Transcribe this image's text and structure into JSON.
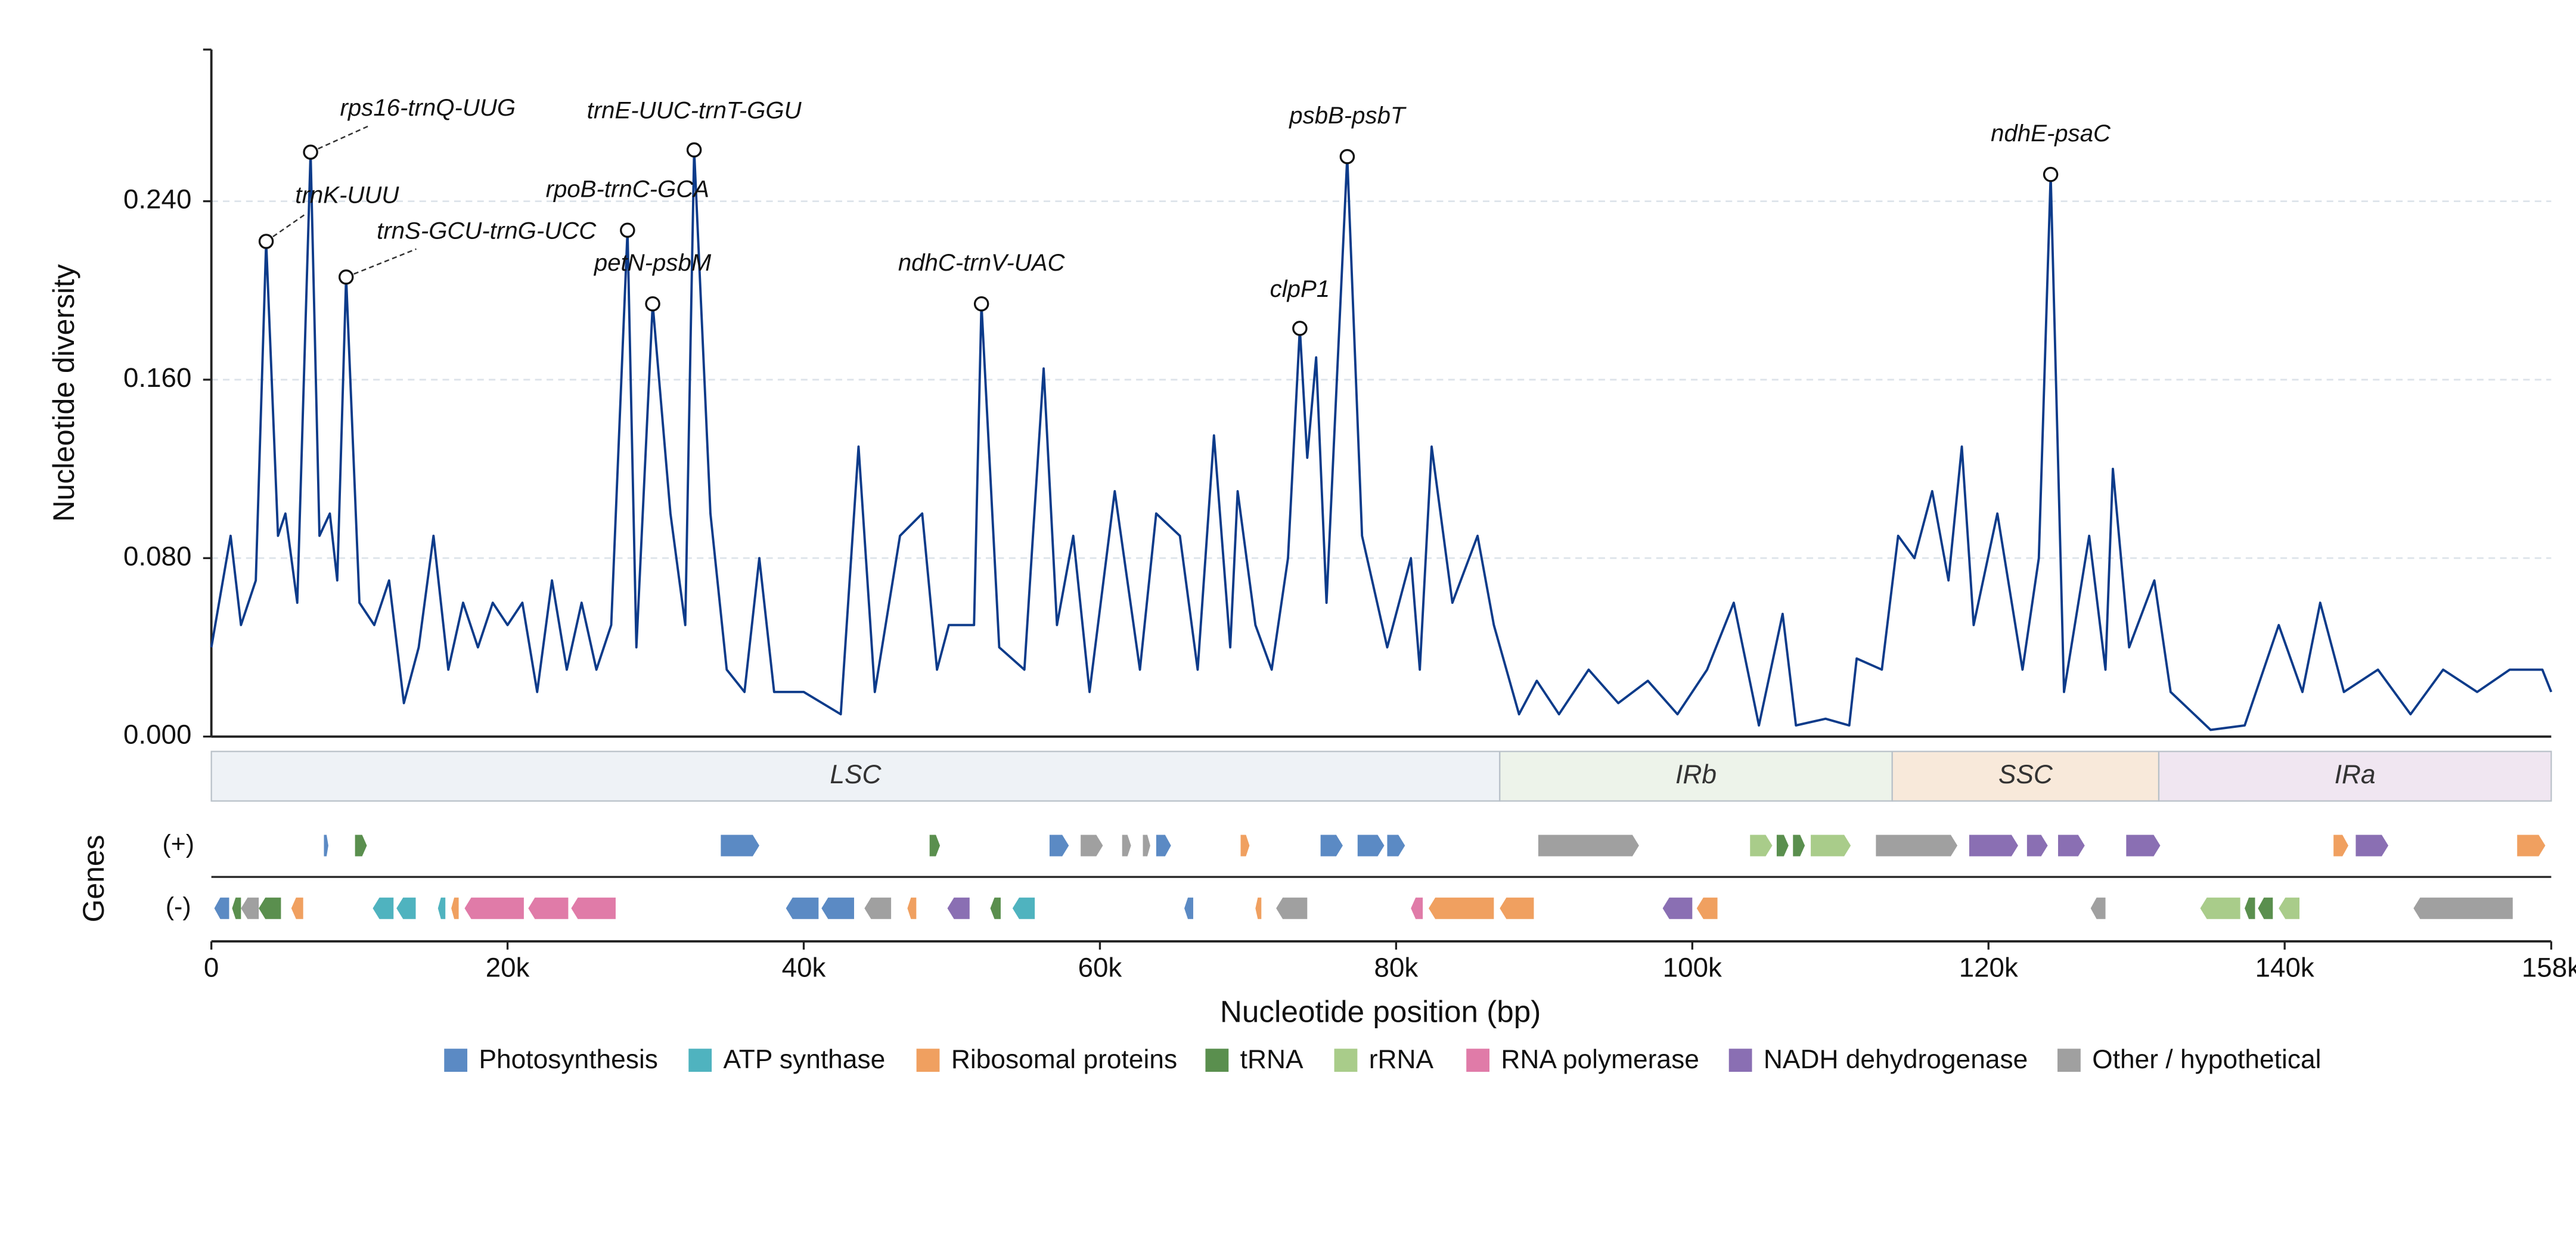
{
  "chart_data": {
    "type": "line",
    "ylabel": "Nucleotide diversity",
    "xlabel": "Nucleotide position (bp)",
    "color": "#0d3b8a",
    "grid": true,
    "xlim": [
      0,
      158000
    ],
    "xticks": [
      {
        "value": 0,
        "label": "0"
      },
      {
        "value": 20000,
        "label": "20k"
      },
      {
        "value": 40000,
        "label": "40k"
      },
      {
        "value": 60000,
        "label": "60k"
      },
      {
        "value": 80000,
        "label": "80k"
      },
      {
        "value": 100000,
        "label": "100k"
      },
      {
        "value": 120000,
        "label": "120k"
      },
      {
        "value": 140000,
        "label": "140k"
      },
      {
        "value": 158000,
        "label": "158k"
      }
    ],
    "ylim": [
      0,
      0.308
    ],
    "yticks": [
      {
        "value": 0,
        "label": "0.000"
      },
      {
        "value": 0.08,
        "label": "0.080"
      },
      {
        "value": 0.16,
        "label": "0.160"
      },
      {
        "value": 0.24,
        "label": "0.240"
      }
    ],
    "x": [
      0,
      1300,
      2000,
      3000,
      3700,
      4500,
      5000,
      5800,
      6700,
      7300,
      8000,
      8500,
      9100,
      10000,
      11000,
      12000,
      13000,
      14000,
      15000,
      16000,
      17000,
      18000,
      19000,
      20000,
      21000,
      22000,
      23000,
      24000,
      25000,
      26000,
      27000,
      28100,
      28700,
      29800,
      31000,
      32000,
      32600,
      33700,
      34800,
      36000,
      37000,
      38000,
      40000,
      42500,
      43700,
      44800,
      46500,
      48000,
      49000,
      49800,
      51500,
      52000,
      53200,
      54900,
      56200,
      57100,
      58200,
      59300,
      61000,
      62700,
      63800,
      65400,
      66600,
      67700,
      68800,
      69300,
      70500,
      71600,
      72700,
      73500,
      74000,
      74600,
      75300,
      76700,
      77700,
      79400,
      81000,
      81600,
      82400,
      83800,
      85500,
      86600,
      88300,
      89500,
      91000,
      93000,
      95000,
      97000,
      99000,
      101000,
      102800,
      104500,
      106100,
      107000,
      109000,
      110600,
      111100,
      112800,
      113900,
      115000,
      116200,
      117300,
      118200,
      119000,
      120600,
      122300,
      123400,
      124200,
      125100,
      126800,
      127900,
      128400,
      129500,
      131200,
      132300,
      135000,
      137300,
      139600,
      141200,
      142400,
      144000,
      146300,
      148500,
      150700,
      153000,
      155200,
      157400,
      158000
    ],
    "values": [
      0.04,
      0.09,
      0.05,
      0.07,
      0.222,
      0.09,
      0.1,
      0.06,
      0.262,
      0.09,
      0.1,
      0.07,
      0.206,
      0.06,
      0.05,
      0.07,
      0.015,
      0.04,
      0.09,
      0.03,
      0.06,
      0.04,
      0.06,
      0.05,
      0.06,
      0.02,
      0.07,
      0.03,
      0.06,
      0.03,
      0.05,
      0.227,
      0.04,
      0.194,
      0.1,
      0.05,
      0.263,
      0.1,
      0.03,
      0.02,
      0.08,
      0.02,
      0.02,
      0.01,
      0.13,
      0.02,
      0.09,
      0.1,
      0.03,
      0.05,
      0.05,
      0.194,
      0.04,
      0.03,
      0.165,
      0.05,
      0.09,
      0.02,
      0.11,
      0.03,
      0.1,
      0.09,
      0.03,
      0.135,
      0.04,
      0.11,
      0.05,
      0.03,
      0.08,
      0.183,
      0.125,
      0.17,
      0.06,
      0.26,
      0.09,
      0.04,
      0.08,
      0.03,
      0.13,
      0.06,
      0.09,
      0.05,
      0.01,
      0.025,
      0.01,
      0.03,
      0.015,
      0.025,
      0.01,
      0.03,
      0.06,
      0.005,
      0.055,
      0.005,
      0.008,
      0.005,
      0.035,
      0.03,
      0.09,
      0.08,
      0.11,
      0.07,
      0.13,
      0.05,
      0.1,
      0.03,
      0.08,
      0.252,
      0.02,
      0.09,
      0.03,
      0.12,
      0.04,
      0.07,
      0.02,
      0.003,
      0.005,
      0.05,
      0.02,
      0.06,
      0.02,
      0.03,
      0.01,
      0.03,
      0.02,
      0.03,
      0.03,
      0.02
    ],
    "annotations": [
      {
        "label": "trnK-UUU",
        "x": 3700,
        "y": 0.222
      },
      {
        "label": "rps16-trnQ-UUG",
        "x": 6700,
        "y": 0.262
      },
      {
        "label": "trnS-GCU-trnG-UCC",
        "x": 9100,
        "y": 0.206
      },
      {
        "label": "rpoB-trnC-GCA",
        "x": 28100,
        "y": 0.227
      },
      {
        "label": "petN-psbM",
        "x": 29800,
        "y": 0.194
      },
      {
        "label": "trnE-UUC-trnT-GGU",
        "x": 32600,
        "y": 0.263
      },
      {
        "label": "ndhC-trnV-UAC",
        "x": 52000,
        "y": 0.194
      },
      {
        "label": "clpP1",
        "x": 73500,
        "y": 0.183
      },
      {
        "label": "psbB-psbT",
        "x": 76700,
        "y": 0.26
      },
      {
        "label": "ndhE-psaC",
        "x": 124200,
        "y": 0.252
      }
    ],
    "regions": [
      {
        "name": "LSC",
        "start": 0,
        "end": 87000,
        "color": "#eef2f6"
      },
      {
        "name": "IRb",
        "start": 87000,
        "end": 113500,
        "color": "#edf3ea"
      },
      {
        "name": "SSC",
        "start": 113500,
        "end": 131500,
        "color": "#f8e9da"
      },
      {
        "name": "IRa",
        "start": 131500,
        "end": 158000,
        "color": "#f0e6f1"
      }
    ],
    "gene_track": {
      "label": "Genes",
      "strands": [
        "(+)",
        "(-)"
      ],
      "categories": [
        {
          "name": "Photosynthesis",
          "color": "#5b8ac4"
        },
        {
          "name": "ATP synthase",
          "color": "#4fb3bf"
        },
        {
          "name": "Ribosomal proteins",
          "color": "#f0a060"
        },
        {
          "name": "tRNA",
          "color": "#5a8f4e"
        },
        {
          "name": "rRNA",
          "color": "#a9cc8a"
        },
        {
          "name": "RNA polymerase",
          "color": "#e07ba8"
        },
        {
          "name": "NADH dehydrogenase",
          "color": "#8a6fb3"
        },
        {
          "name": "Other / hypothetical",
          "color": "#a0a0a0"
        }
      ],
      "genes": [
        {
          "start": 7600,
          "end": 7900,
          "strand": 0,
          "category": 0
        },
        {
          "start": 9700,
          "end": 10500,
          "strand": 0,
          "category": 3
        },
        {
          "start": 34400,
          "end": 37000,
          "strand": 0,
          "category": 0
        },
        {
          "start": 48500,
          "end": 49200,
          "strand": 0,
          "category": 3
        },
        {
          "start": 56600,
          "end": 57900,
          "strand": 0,
          "category": 0
        },
        {
          "start": 58700,
          "end": 60200,
          "strand": 0,
          "category": 7
        },
        {
          "start": 61500,
          "end": 62100,
          "strand": 0,
          "category": 7
        },
        {
          "start": 62900,
          "end": 63400,
          "strand": 0,
          "category": 7
        },
        {
          "start": 63800,
          "end": 64800,
          "strand": 0,
          "category": 0
        },
        {
          "start": 69500,
          "end": 70100,
          "strand": 0,
          "category": 2
        },
        {
          "start": 74900,
          "end": 76400,
          "strand": 0,
          "category": 0
        },
        {
          "start": 77400,
          "end": 79200,
          "strand": 0,
          "category": 0
        },
        {
          "start": 79400,
          "end": 80600,
          "strand": 0,
          "category": 0
        },
        {
          "start": 89600,
          "end": 96400,
          "strand": 0,
          "category": 7
        },
        {
          "start": 103900,
          "end": 105400,
          "strand": 0,
          "category": 4
        },
        {
          "start": 105700,
          "end": 106500,
          "strand": 0,
          "category": 3
        },
        {
          "start": 106800,
          "end": 107600,
          "strand": 0,
          "category": 3
        },
        {
          "start": 108000,
          "end": 110700,
          "strand": 0,
          "category": 4
        },
        {
          "start": 112400,
          "end": 117900,
          "strand": 0,
          "category": 7
        },
        {
          "start": 118700,
          "end": 122000,
          "strand": 0,
          "category": 6
        },
        {
          "start": 122600,
          "end": 124000,
          "strand": 0,
          "category": 6
        },
        {
          "start": 124700,
          "end": 126500,
          "strand": 0,
          "category": 6
        },
        {
          "start": 129300,
          "end": 131600,
          "strand": 0,
          "category": 6
        },
        {
          "start": 143300,
          "end": 144300,
          "strand": 0,
          "category": 2
        },
        {
          "start": 144800,
          "end": 147000,
          "strand": 0,
          "category": 6
        },
        {
          "start": 155700,
          "end": 157600,
          "strand": 0,
          "category": 2
        },
        {
          "start": 200,
          "end": 1200,
          "strand": 1,
          "category": 0
        },
        {
          "start": 1400,
          "end": 2000,
          "strand": 1,
          "category": 3
        },
        {
          "start": 2000,
          "end": 3200,
          "strand": 1,
          "category": 7
        },
        {
          "start": 3200,
          "end": 4700,
          "strand": 1,
          "category": 3
        },
        {
          "start": 5400,
          "end": 6200,
          "strand": 1,
          "category": 2
        },
        {
          "start": 10900,
          "end": 12300,
          "strand": 1,
          "category": 1
        },
        {
          "start": 12500,
          "end": 13800,
          "strand": 1,
          "category": 1
        },
        {
          "start": 15300,
          "end": 15800,
          "strand": 1,
          "category": 1
        },
        {
          "start": 16200,
          "end": 16700,
          "strand": 1,
          "category": 2
        },
        {
          "start": 17100,
          "end": 21100,
          "strand": 1,
          "category": 5
        },
        {
          "start": 21400,
          "end": 24100,
          "strand": 1,
          "category": 5
        },
        {
          "start": 24300,
          "end": 27300,
          "strand": 1,
          "category": 5
        },
        {
          "start": 38800,
          "end": 41000,
          "strand": 1,
          "category": 0
        },
        {
          "start": 41200,
          "end": 43400,
          "strand": 1,
          "category": 0
        },
        {
          "start": 44100,
          "end": 45900,
          "strand": 1,
          "category": 7
        },
        {
          "start": 47000,
          "end": 47600,
          "strand": 1,
          "category": 2
        },
        {
          "start": 49700,
          "end": 51200,
          "strand": 1,
          "category": 6
        },
        {
          "start": 52600,
          "end": 53300,
          "strand": 1,
          "category": 3
        },
        {
          "start": 54100,
          "end": 55600,
          "strand": 1,
          "category": 1
        },
        {
          "start": 65700,
          "end": 66300,
          "strand": 1,
          "category": 0
        },
        {
          "start": 70500,
          "end": 70900,
          "strand": 1,
          "category": 2
        },
        {
          "start": 71900,
          "end": 74000,
          "strand": 1,
          "category": 7
        },
        {
          "start": 81000,
          "end": 81800,
          "strand": 1,
          "category": 5
        },
        {
          "start": 82200,
          "end": 86600,
          "strand": 1,
          "category": 2
        },
        {
          "start": 87000,
          "end": 89300,
          "strand": 1,
          "category": 2
        },
        {
          "start": 98000,
          "end": 100000,
          "strand": 1,
          "category": 6
        },
        {
          "start": 100300,
          "end": 101700,
          "strand": 1,
          "category": 2
        },
        {
          "start": 126900,
          "end": 127900,
          "strand": 1,
          "category": 7
        },
        {
          "start": 134300,
          "end": 137000,
          "strand": 1,
          "category": 4
        },
        {
          "start": 137300,
          "end": 138000,
          "strand": 1,
          "category": 3
        },
        {
          "start": 138200,
          "end": 139200,
          "strand": 1,
          "category": 3
        },
        {
          "start": 139600,
          "end": 141000,
          "strand": 1,
          "category": 4
        },
        {
          "start": 148700,
          "end": 155400,
          "strand": 1,
          "category": 7
        }
      ]
    }
  }
}
